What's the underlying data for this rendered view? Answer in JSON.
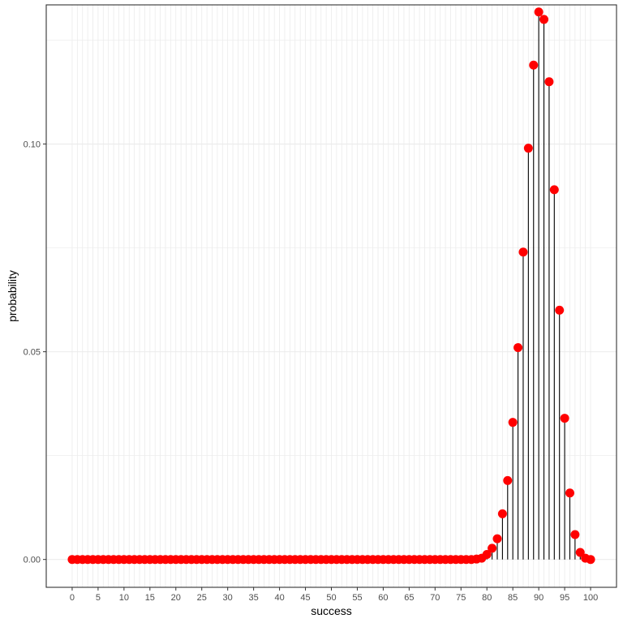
{
  "chart_data": {
    "type": "scatter",
    "style": "lollipop",
    "xlabel": "success",
    "ylabel": "probability",
    "xlim": [
      -5,
      105
    ],
    "ylim": [
      -0.0067,
      0.1335
    ],
    "x_ticks": [
      0,
      5,
      10,
      15,
      20,
      25,
      30,
      35,
      40,
      45,
      50,
      55,
      60,
      65,
      70,
      75,
      80,
      85,
      90,
      95,
      100
    ],
    "y_ticks": [
      {
        "value": 0.0,
        "label": "0.00"
      },
      {
        "value": 0.05,
        "label": "0.05"
      },
      {
        "value": 0.1,
        "label": "0.10"
      }
    ],
    "y_minor_ticks": [
      0.025,
      0.075,
      0.125
    ],
    "grid": true,
    "legend": "none",
    "point_color": "#ff0000",
    "stem_color": "#000000",
    "panel_border_color": "#333333",
    "grid_color": "#ebebeb",
    "series": [
      {
        "x": [
          0,
          1,
          2,
          3,
          4,
          5,
          6,
          7,
          8,
          9,
          10,
          11,
          12,
          13,
          14,
          15,
          16,
          17,
          18,
          19,
          20,
          21,
          22,
          23,
          24,
          25,
          26,
          27,
          28,
          29,
          30,
          31,
          32,
          33,
          34,
          35,
          36,
          37,
          38,
          39,
          40,
          41,
          42,
          43,
          44,
          45,
          46,
          47,
          48,
          49,
          50,
          51,
          52,
          53,
          54,
          55,
          56,
          57,
          58,
          59,
          60,
          61,
          62,
          63,
          64,
          65,
          66,
          67,
          68,
          69,
          70,
          71,
          72,
          73,
          74,
          75,
          76,
          77,
          78,
          79,
          80,
          81,
          82,
          83,
          84,
          85,
          86,
          87,
          88,
          89,
          90,
          91,
          92,
          93,
          94,
          95,
          96,
          97,
          98,
          99,
          100
        ],
        "values": [
          0,
          0,
          0,
          0,
          0,
          0,
          0,
          0,
          0,
          0,
          0,
          0,
          0,
          0,
          0,
          0,
          0,
          0,
          0,
          0,
          0,
          0,
          0,
          0,
          0,
          0,
          0,
          0,
          0,
          0,
          0,
          0,
          0,
          0,
          0,
          0,
          0,
          0,
          0,
          0,
          0,
          0,
          0,
          0,
          0,
          0,
          0,
          0,
          0,
          0,
          0,
          0,
          0,
          0,
          0,
          0,
          0,
          0,
          0,
          0,
          0,
          0,
          0,
          0,
          0,
          0,
          0,
          0,
          0,
          0,
          0,
          0,
          0,
          0,
          0,
          0,
          0,
          0,
          0.0001,
          0.0003,
          0.0012,
          0.0027,
          0.005,
          0.011,
          0.019,
          0.033,
          0.051,
          0.074,
          0.099,
          0.119,
          0.1318,
          0.13,
          0.115,
          0.089,
          0.06,
          0.034,
          0.016,
          0.006,
          0.0017,
          0.0003,
          0.0
        ]
      }
    ]
  }
}
